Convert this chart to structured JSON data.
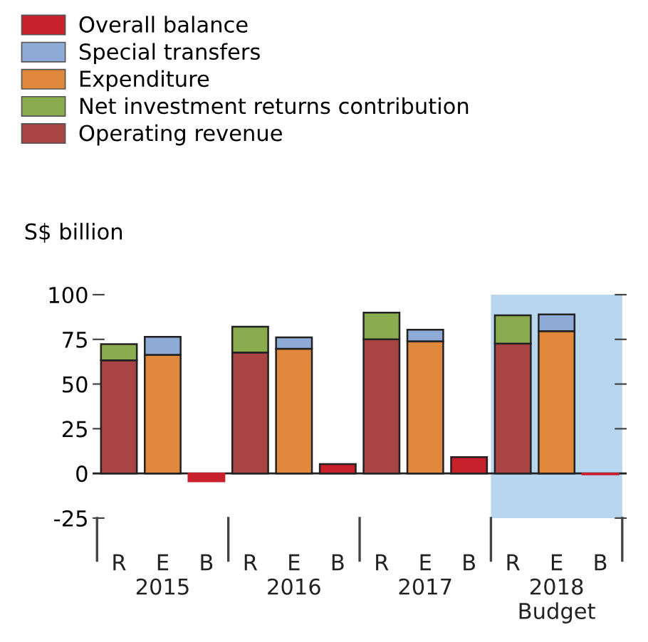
{
  "chart_data": {
    "type": "bar",
    "stacked": true,
    "ylabel": "S$ billion",
    "categories": [
      "R",
      "E\n2015",
      "B",
      "R",
      "E\n2016",
      "B",
      "R",
      "E\n2017",
      "B",
      "R",
      "E\n2018\nBudget",
      "B"
    ],
    "series": [
      {
        "name": "Operating revenue",
        "color": "#a84444",
        "values": [
          63.3,
          null,
          null,
          67.7,
          null,
          null,
          75.0,
          null,
          null,
          72.6,
          null,
          null
        ]
      },
      {
        "name": "Net investment returns contribution",
        "color": "#8aab4e",
        "values": [
          9.0,
          null,
          null,
          14.4,
          null,
          null,
          15.0,
          null,
          null,
          15.9,
          null,
          null
        ]
      },
      {
        "name": "Expenditure",
        "color": "#e0883c",
        "values": [
          null,
          66.4,
          null,
          null,
          69.7,
          null,
          null,
          73.9,
          null,
          null,
          79.6,
          null
        ]
      },
      {
        "name": "Special transfers",
        "color": "#8eaad6",
        "values": [
          null,
          10.0,
          null,
          null,
          6.4,
          null,
          null,
          6.5,
          null,
          null,
          9.4,
          null
        ]
      },
      {
        "name": "Overall balance",
        "color": "#c8202c",
        "values": [
          null,
          null,
          -4.4,
          null,
          null,
          5.2,
          null,
          null,
          9.1,
          null,
          null,
          -0.5
        ]
      }
    ],
    "ylim": [
      -25,
      100
    ],
    "yticks": [
      -25,
      0,
      25,
      50,
      75,
      100
    ],
    "legend": "top left"
  }
}
